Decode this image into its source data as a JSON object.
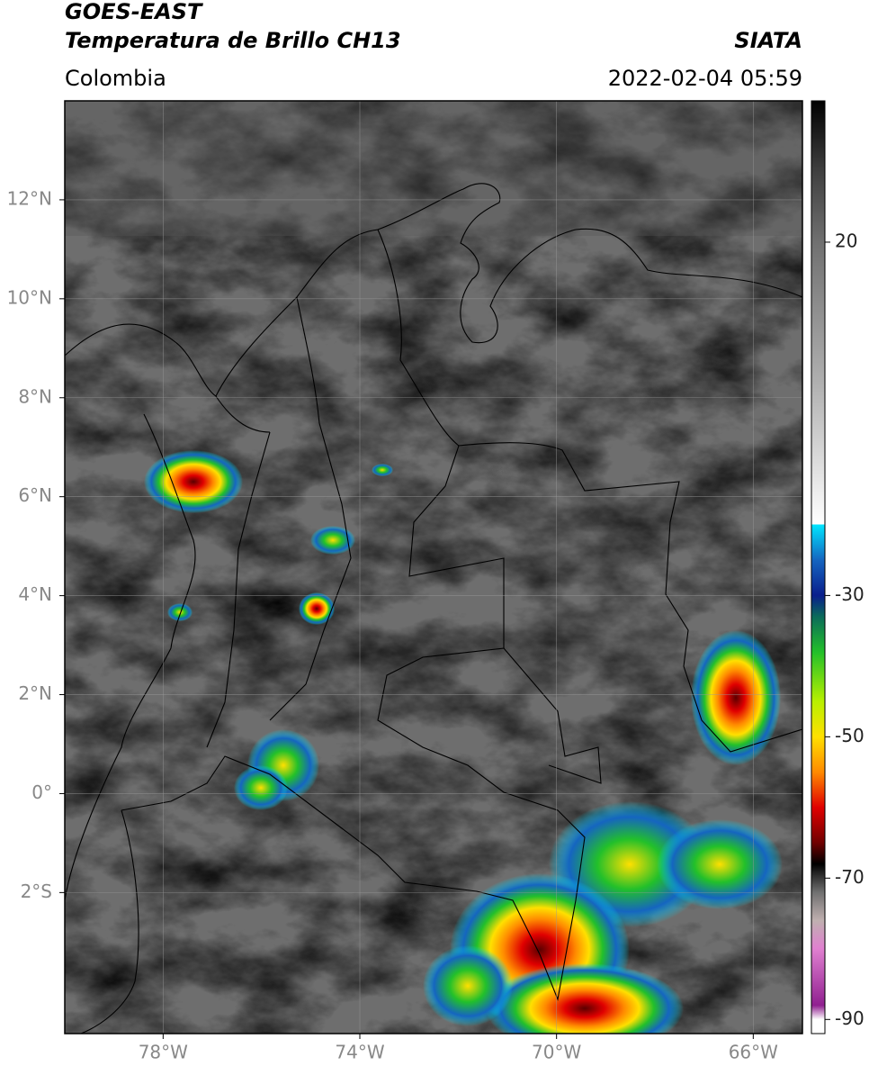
{
  "chart_data": {
    "type": "map",
    "title": "GOES-EAST",
    "subtitle": "Temperatura de Brillo CH13",
    "source": "SIATA",
    "region": "Colombia",
    "timestamp": "2022-02-04 05:59",
    "xlim": [
      -80,
      -65
    ],
    "ylim": [
      -4.85,
      14
    ],
    "xticks": [
      {
        "value": -78,
        "label": "78°W"
      },
      {
        "value": -74,
        "label": "74°W"
      },
      {
        "value": -70,
        "label": "70°W"
      },
      {
        "value": -66,
        "label": "66°W"
      }
    ],
    "yticks": [
      {
        "value": 12,
        "label": "12°N"
      },
      {
        "value": 10,
        "label": "10°N"
      },
      {
        "value": 8,
        "label": "8°N"
      },
      {
        "value": 6,
        "label": "6°N"
      },
      {
        "value": 4,
        "label": "4°N"
      },
      {
        "value": 2,
        "label": "2°N"
      },
      {
        "value": 0,
        "label": "0°"
      },
      {
        "value": -2,
        "label": "2°S"
      }
    ],
    "grid": true,
    "colorbar": {
      "lim": [
        -92,
        40
      ],
      "ticks": [
        20,
        -30,
        -50,
        -70,
        -90
      ],
      "stops": [
        {
          "value": 40,
          "color": "#000000"
        },
        {
          "value": 30,
          "color": "#404040"
        },
        {
          "value": 20,
          "color": "#707070"
        },
        {
          "value": 0,
          "color": "#b0b0b0"
        },
        {
          "value": -19.9,
          "color": "#ffffff"
        },
        {
          "value": -20,
          "color": "#00e5ff"
        },
        {
          "value": -25,
          "color": "#1565c0"
        },
        {
          "value": -30,
          "color": "#0a1e8c"
        },
        {
          "value": -33,
          "color": "#0b6b5a"
        },
        {
          "value": -38,
          "color": "#22c02a"
        },
        {
          "value": -45,
          "color": "#b8f000"
        },
        {
          "value": -50,
          "color": "#ffe000"
        },
        {
          "value": -55,
          "color": "#ff8a00"
        },
        {
          "value": -60,
          "color": "#e00000"
        },
        {
          "value": -65,
          "color": "#700000"
        },
        {
          "value": -68,
          "color": "#000000"
        },
        {
          "value": -72,
          "color": "#707070"
        },
        {
          "value": -76,
          "color": "#c0b0b0"
        },
        {
          "value": -80,
          "color": "#e080d0"
        },
        {
          "value": -88,
          "color": "#902090"
        },
        {
          "value": -90,
          "color": "#ffffff"
        },
        {
          "value": -92,
          "color": "#ffffff"
        }
      ]
    }
  }
}
